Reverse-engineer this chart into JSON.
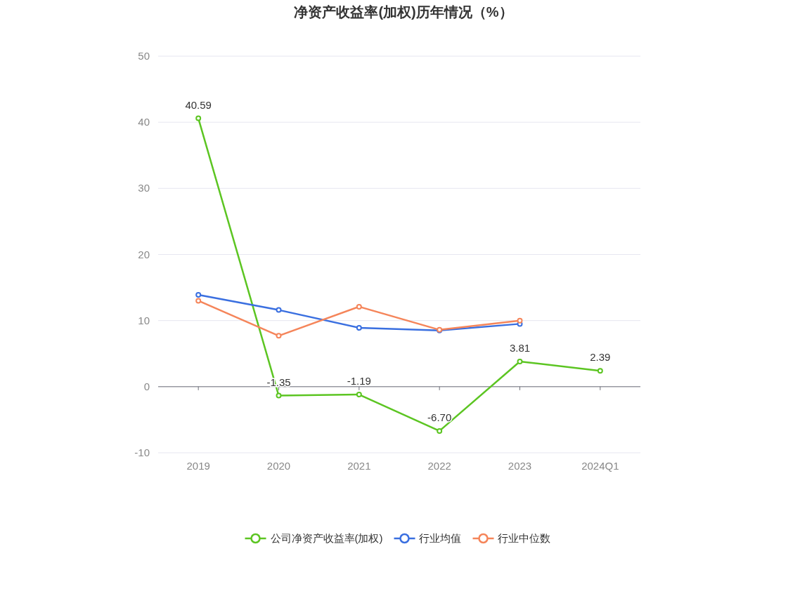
{
  "chart_data": {
    "type": "line",
    "title": "净资产收益率(加权)历年情况（%）",
    "categories": [
      "2019",
      "2020",
      "2021",
      "2022",
      "2023",
      "2024Q1"
    ],
    "series": [
      {
        "name": "公司净资产收益率(加权)",
        "color": "#5cc522",
        "values": [
          40.59,
          -1.35,
          -1.19,
          -6.7,
          3.81,
          2.39
        ],
        "value_labels": [
          "40.59",
          "-1.35",
          "-1.19",
          "-6.70",
          "3.81",
          "2.39"
        ]
      },
      {
        "name": "行业均值",
        "color": "#3a6fe0",
        "values": [
          13.9,
          11.6,
          8.9,
          8.5,
          9.5,
          null
        ]
      },
      {
        "name": "行业中位数",
        "color": "#f5855a",
        "values": [
          13.0,
          7.7,
          12.1,
          8.6,
          10.0,
          null
        ]
      }
    ],
    "ylim": [
      -10,
      50
    ],
    "yticks": [
      -10,
      0,
      10,
      20,
      30,
      40,
      50
    ],
    "grid": "y",
    "legend": "bottom",
    "marker": "circle",
    "line_style": "solid"
  }
}
